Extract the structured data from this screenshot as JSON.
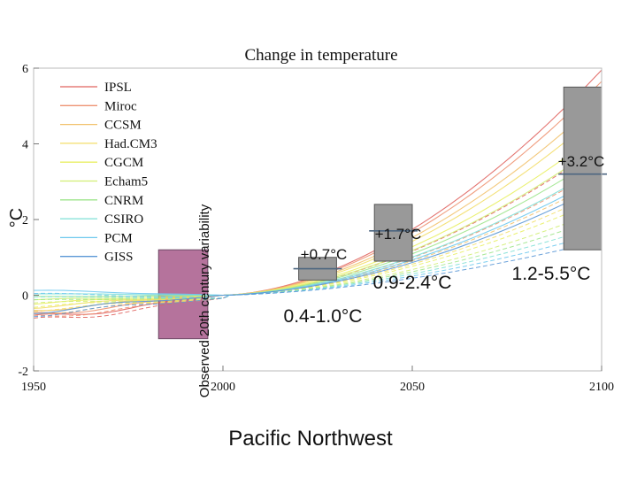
{
  "chart_data": {
    "type": "line",
    "title": "Change in temperature",
    "ylabel": "°C",
    "region_label": "Pacific Northwest",
    "xlim": [
      1950,
      2100
    ],
    "ylim": [
      -2,
      6
    ],
    "x_ticks": [
      "1950",
      "2000",
      "2050",
      "2100"
    ],
    "y_ticks": [
      "-2",
      "0",
      "2",
      "4",
      "6"
    ],
    "legend_position": "top-left",
    "series": [
      {
        "name": "IPSL",
        "color": "#e0645f"
      },
      {
        "name": "Miroc",
        "color": "#ee9372"
      },
      {
        "name": "CCSM",
        "color": "#f2c26e"
      },
      {
        "name": "Had.CM3",
        "color": "#f3de6a"
      },
      {
        "name": "CGCM",
        "color": "#e9ef64"
      },
      {
        "name": "Echam5",
        "color": "#d1ee74"
      },
      {
        "name": "CNRM",
        "color": "#9fe58d"
      },
      {
        "name": "CSIRO",
        "color": "#7fe0d6"
      },
      {
        "name": "PCM",
        "color": "#6fc9ee"
      },
      {
        "name": "GISS",
        "color": "#5b98d6"
      }
    ],
    "variability_band": {
      "label": "Observed 20th century variability",
      "x": [
        1983,
        1996
      ],
      "y": [
        -1.15,
        1.2
      ],
      "color": "#b5739c"
    },
    "projections": [
      {
        "x": [
          2020,
          2030
        ],
        "mean": 0.7,
        "low": 0.4,
        "high": 1.0,
        "mean_label": "+0.7°C",
        "range_label": "0.4-1.0°C",
        "color": "#999999"
      },
      {
        "x": [
          2040,
          2050
        ],
        "mean": 1.7,
        "low": 0.9,
        "high": 2.4,
        "mean_label": "+1.7°C",
        "range_label": "0.9-2.4°C",
        "color": "#999999"
      },
      {
        "x": [
          2090,
          2100
        ],
        "mean": 3.2,
        "low": 1.2,
        "high": 5.5,
        "mean_label": "+3.2°C",
        "range_label": "1.2-5.5°C",
        "color": "#999999"
      }
    ]
  }
}
